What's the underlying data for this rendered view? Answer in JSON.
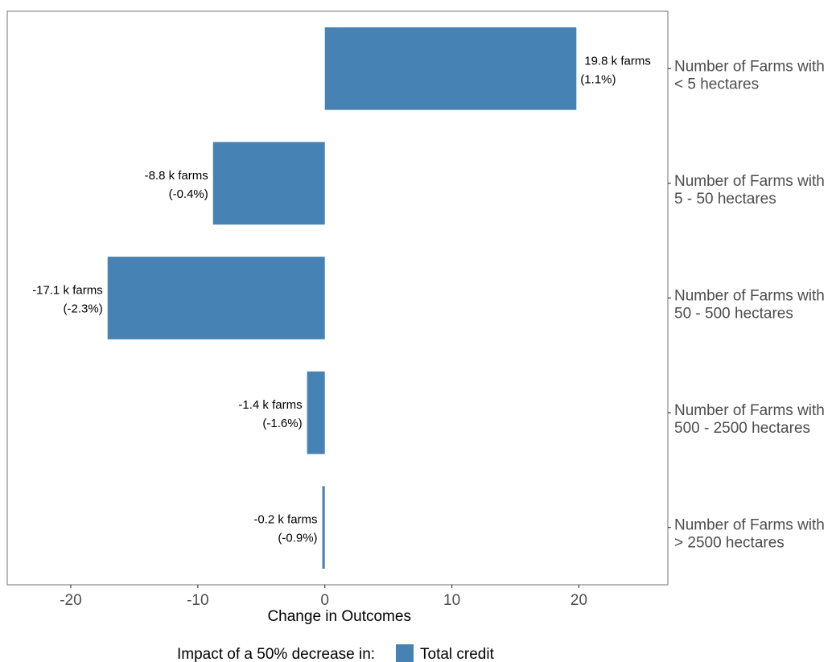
{
  "chart_data": {
    "type": "bar",
    "orientation": "horizontal",
    "categories": [
      [
        "Number of Farms with",
        "< 5 hectares"
      ],
      [
        "Number of Farms with",
        "5 - 50 hectares"
      ],
      [
        "Number of Farms with",
        "50 - 500 hectares"
      ],
      [
        "Number of Farms with",
        "500 - 2500 hectares"
      ],
      [
        "Number of Farms with",
        "> 2500 hectares"
      ]
    ],
    "series": [
      {
        "name": "Total credit",
        "color": "#4682B4",
        "values": [
          19.8,
          -8.8,
          -17.1,
          -1.4,
          -0.2
        ]
      }
    ],
    "data_labels": [
      [
        "19.8 k farms",
        "(1.1%)"
      ],
      [
        "-8.8 k farms",
        "(-0.4%)"
      ],
      [
        "-17.1 k farms",
        "(-2.3%)"
      ],
      [
        "-1.4 k farms",
        "(-1.6%)"
      ],
      [
        "-0.2 k farms",
        "(-0.9%)"
      ]
    ],
    "xlabel": "Change in Outcomes",
    "xlim": [
      -25,
      27
    ],
    "xticks": [
      -20,
      -10,
      0,
      10,
      20
    ],
    "xtick_labels": [
      "-20",
      "-10",
      "0",
      "10",
      "20"
    ],
    "category_axis_side": "right",
    "grid": false,
    "legend": {
      "position": "bottom",
      "title": "Impact of a 50% decrease in:",
      "entries": [
        "Total credit"
      ]
    }
  }
}
